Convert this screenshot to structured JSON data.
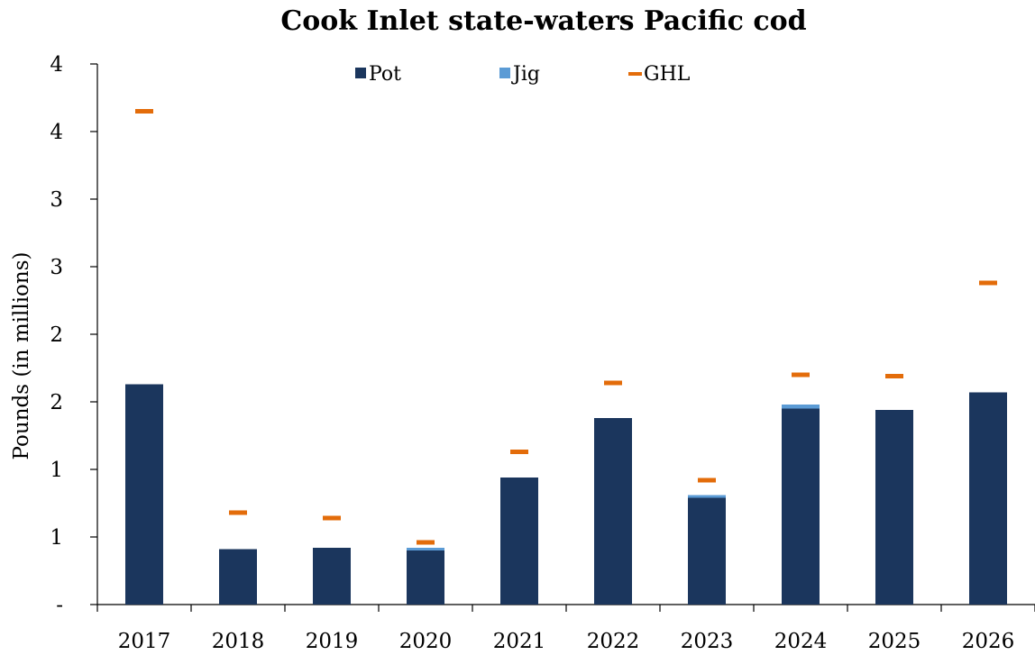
{
  "chart_data": {
    "type": "bar",
    "stacked": true,
    "title": "Cook Inlet state-waters Pacific cod",
    "xlabel": "",
    "ylabel": "Pounds (in millions)",
    "categories": [
      "2017",
      "2018",
      "2019",
      "2020",
      "2021",
      "2022",
      "2023",
      "2024",
      "2025",
      "2026"
    ],
    "series": [
      {
        "name": "Pot",
        "kind": "bar",
        "color": "#1b365d",
        "values": [
          1.63,
          0.41,
          0.42,
          0.4,
          0.94,
          1.38,
          0.79,
          1.45,
          1.44,
          1.57
        ]
      },
      {
        "name": "Jig",
        "kind": "bar",
        "color": "#5b9bd5",
        "values": [
          0.0,
          0.0,
          0.0,
          0.02,
          0.0,
          0.0,
          0.02,
          0.03,
          0.0,
          0.0
        ]
      },
      {
        "name": "GHL",
        "kind": "marker",
        "color": "#e36c0a",
        "values": [
          3.65,
          0.68,
          0.64,
          0.46,
          1.13,
          1.64,
          0.92,
          1.7,
          1.69,
          2.38
        ]
      }
    ],
    "ylim": [
      0,
      4.0
    ],
    "yticks": [
      0,
      0.5,
      1.0,
      1.5,
      2.0,
      2.5,
      3.0,
      3.5,
      4.0
    ],
    "ytick_labels": [
      "-",
      "1",
      "1",
      "2",
      "2",
      "3",
      "3",
      "4",
      "4"
    ],
    "grid": false,
    "legend_position": "top-center"
  }
}
